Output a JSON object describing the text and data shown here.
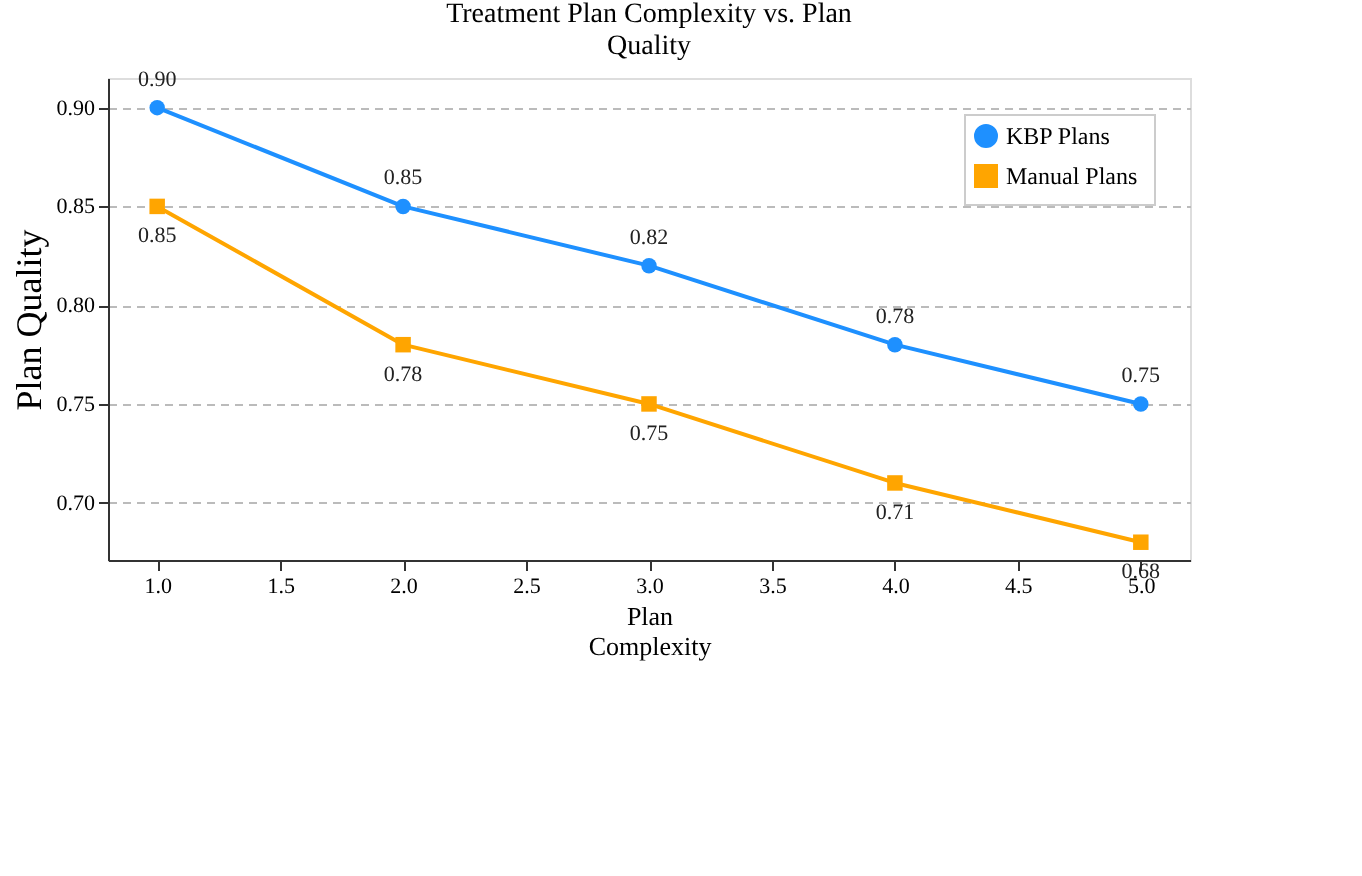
{
  "chart_data": {
    "type": "line",
    "title": "Treatment  Plan Complexity vs.  Plan\nQuality",
    "xlabel": "Plan\nComplexity",
    "ylabel": "Plan  Quality",
    "x": [
      1,
      2,
      3,
      4,
      5
    ],
    "series": [
      {
        "name": "KBP  Plans",
        "color": "#1e90ff",
        "marker": "circle",
        "values": [
          0.9,
          0.85,
          0.82,
          0.78,
          0.75
        ],
        "value_labels": [
          "0.90",
          "0.85",
          "0.82",
          "0.78",
          "0.75"
        ]
      },
      {
        "name": "Manual  Plans",
        "color": "#ffa500",
        "marker": "square",
        "values": [
          0.85,
          0.78,
          0.75,
          0.71,
          0.68
        ],
        "value_labels": [
          "0.85",
          "0.78",
          "0.75",
          "0.71",
          "0.68"
        ]
      }
    ],
    "xlim": [
      0.8,
      5.2
    ],
    "xticks": [
      {
        "value": 1,
        "label": "1.0"
      },
      {
        "value": 1.5,
        "label": "1.5"
      },
      {
        "value": 2,
        "label": "2.0"
      },
      {
        "value": 2.5,
        "label": "2.5"
      },
      {
        "value": 3,
        "label": "3.0"
      },
      {
        "value": 3.5,
        "label": "3.5"
      },
      {
        "value": 4,
        "label": "4.0"
      },
      {
        "value": 4.5,
        "label": "4.5"
      },
      {
        "value": 5,
        "label": "5.0"
      }
    ],
    "ylim": [
      0.671,
      0.915
    ],
    "yticks": [
      {
        "value": 0.7,
        "label": "0.70"
      },
      {
        "value": 0.75,
        "label": "0.75"
      },
      {
        "value": 0.8,
        "label": "0.80"
      },
      {
        "value": 0.85,
        "label": "0.85"
      },
      {
        "value": 0.9,
        "label": "0.90"
      }
    ],
    "grid": "y",
    "legend": "top right",
    "line_style": "solid"
  }
}
